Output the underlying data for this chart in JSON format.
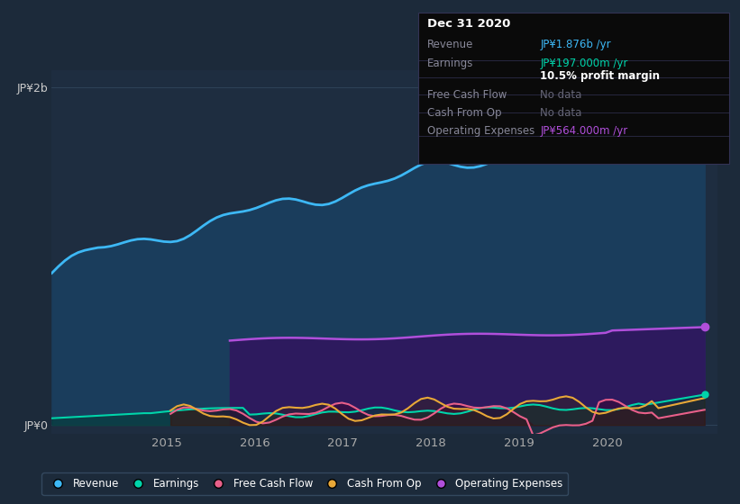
{
  "bg_color": "#1c2a3a",
  "plot_bg_color": "#1e2d40",
  "title": "Dec 31 2020",
  "tooltip": {
    "Revenue": "JP¥1.876b /yr",
    "Earnings": "JP¥197.000m /yr",
    "profit_margin": "10.5% profit margin",
    "Free Cash Flow": "No data",
    "Cash From Op": "No data",
    "Operating Expenses": "JP¥564.000m /yr"
  },
  "ylabel_top": "JP¥2b",
  "ylabel_bottom": "JP¥0",
  "x_ticks": [
    2015,
    2016,
    2017,
    2018,
    2019,
    2020
  ],
  "revenue_color": "#3db8f5",
  "earnings_color": "#00d4aa",
  "fcf_color": "#e8608a",
  "cashop_color": "#e8a838",
  "opex_color": "#b04fdb",
  "revenue_fill": "#1a3d5c",
  "opex_fill": "#2d1a5e",
  "legend_items": [
    {
      "label": "Revenue",
      "color": "#3db8f5"
    },
    {
      "label": "Earnings",
      "color": "#00d4aa"
    },
    {
      "label": "Free Cash Flow",
      "color": "#e8608a"
    },
    {
      "label": "Cash From Op",
      "color": "#e8a838"
    },
    {
      "label": "Operating Expenses",
      "color": "#b04fdb"
    }
  ]
}
